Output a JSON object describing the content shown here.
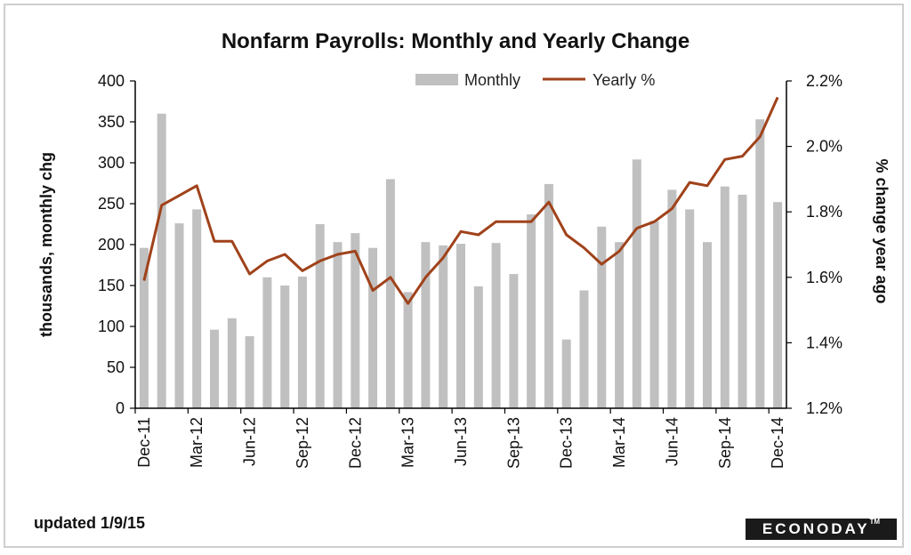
{
  "title": "Nonfarm Payrolls: Monthly and Yearly Change",
  "footer": {
    "updated": "updated 1/9/15",
    "brand": "ECONODAY",
    "brand_mark": "TM"
  },
  "colors": {
    "bars": "#c0c0c0",
    "line": "#a0421a",
    "axis": "#000000"
  },
  "chart_data": {
    "type": "bar+line",
    "title": "Nonfarm Payrolls: Monthly and Yearly Change",
    "months": [
      "Dec-11",
      "Jan-12",
      "Feb-12",
      "Mar-12",
      "Apr-12",
      "May-12",
      "Jun-12",
      "Jul-12",
      "Aug-12",
      "Sep-12",
      "Oct-12",
      "Nov-12",
      "Dec-12",
      "Jan-13",
      "Feb-13",
      "Mar-13",
      "Apr-13",
      "May-13",
      "Jun-13",
      "Jul-13",
      "Aug-13",
      "Sep-13",
      "Oct-13",
      "Nov-13",
      "Dec-13",
      "Jan-14",
      "Feb-14",
      "Mar-14",
      "Apr-14",
      "May-14",
      "Jun-14",
      "Jul-14",
      "Aug-14",
      "Sep-14",
      "Oct-14",
      "Nov-14",
      "Dec-14"
    ],
    "x_tick_labels": [
      "Dec-11",
      "Mar-12",
      "Jun-12",
      "Sep-12",
      "Dec-12",
      "Mar-13",
      "Jun-13",
      "Sep-13",
      "Dec-13",
      "Mar-14",
      "Jun-14",
      "Sep-14",
      "Dec-14"
    ],
    "series": [
      {
        "name": "Monthly",
        "axis": "left",
        "type": "bar",
        "values": [
          196,
          360,
          226,
          243,
          96,
          110,
          88,
          160,
          150,
          161,
          225,
          203,
          214,
          196,
          280,
          142,
          203,
          199,
          201,
          149,
          202,
          164,
          237,
          274,
          84,
          144,
          222,
          203,
          304,
          229,
          267,
          243,
          203,
          271,
          261,
          353,
          252
        ]
      },
      {
        "name": "Yearly %",
        "axis": "right",
        "type": "line",
        "values": [
          1.59,
          1.82,
          1.85,
          1.88,
          1.71,
          1.71,
          1.61,
          1.65,
          1.67,
          1.62,
          1.65,
          1.67,
          1.68,
          1.56,
          1.6,
          1.52,
          1.6,
          1.66,
          1.74,
          1.73,
          1.77,
          1.77,
          1.77,
          1.83,
          1.73,
          1.69,
          1.64,
          1.68,
          1.75,
          1.77,
          1.81,
          1.89,
          1.88,
          1.96,
          1.97,
          2.03,
          2.15
        ]
      }
    ],
    "y_left": {
      "label": "thousands, monthly chg",
      "min": 0,
      "max": 400,
      "ticks": [
        "0",
        "50",
        "100",
        "150",
        "200",
        "250",
        "300",
        "350",
        "400"
      ]
    },
    "y_right": {
      "label": "% change year ago",
      "min": 1.2,
      "max": 2.2,
      "ticks": [
        "1.2%",
        "1.4%",
        "1.6%",
        "1.8%",
        "2.0%",
        "2.2%"
      ]
    },
    "legend": {
      "position": "top-center",
      "items": [
        "Monthly",
        "Yearly %"
      ]
    },
    "grid": false
  }
}
